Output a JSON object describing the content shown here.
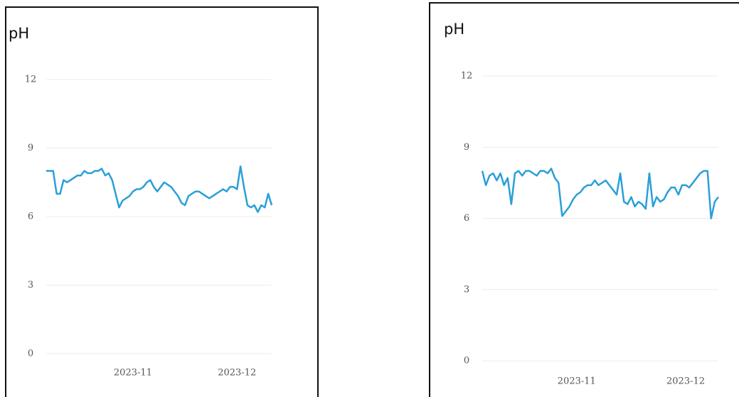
{
  "chart_data": [
    {
      "type": "line",
      "title": "pH",
      "x": [
        0,
        1,
        2,
        3,
        4,
        5,
        6,
        7,
        8,
        9,
        10,
        11,
        12,
        13,
        14,
        15,
        16,
        17,
        18,
        19,
        20,
        21,
        22,
        23,
        24,
        25,
        26,
        27,
        28,
        29,
        30,
        31,
        32,
        33,
        34,
        35,
        36,
        37,
        38,
        39,
        40,
        41,
        42,
        43,
        44,
        45,
        46,
        47,
        48,
        49,
        50,
        51,
        52,
        53,
        54,
        55,
        56,
        57,
        58,
        59,
        60,
        61,
        62,
        63,
        64,
        65
      ],
      "series": [
        {
          "name": "pH",
          "color": "#2a9fd8",
          "values": [
            8.0,
            8.0,
            8.0,
            7.0,
            7.0,
            7.6,
            7.5,
            7.6,
            7.7,
            7.8,
            7.8,
            8.0,
            7.9,
            7.9,
            8.0,
            8.0,
            8.1,
            7.8,
            7.9,
            7.6,
            7.0,
            6.4,
            6.7,
            6.8,
            6.9,
            7.1,
            7.2,
            7.2,
            7.3,
            7.5,
            7.6,
            7.3,
            7.1,
            7.3,
            7.5,
            7.4,
            7.3,
            7.1,
            6.9,
            6.6,
            6.5,
            6.9,
            7.0,
            7.1,
            7.1,
            7.0,
            6.9,
            6.8,
            6.9,
            7.0,
            7.1,
            7.2,
            7.1,
            7.3,
            7.3,
            7.2,
            8.2,
            7.3,
            6.5,
            6.4,
            6.5,
            6.2,
            6.5,
            6.4,
            7.0,
            6.5
          ]
        }
      ],
      "xlim": [
        0,
        65
      ],
      "xticks": [
        {
          "value": 25,
          "label": "2023-11"
        },
        {
          "value": 55,
          "label": "2023-12"
        }
      ],
      "ylim": [
        0,
        12
      ],
      "yticks": [
        0,
        3,
        6,
        9,
        12
      ],
      "grid": true
    },
    {
      "type": "line",
      "title": "pH",
      "x": [
        0,
        1,
        2,
        3,
        4,
        5,
        6,
        7,
        8,
        9,
        10,
        11,
        12,
        13,
        14,
        15,
        16,
        17,
        18,
        19,
        20,
        21,
        22,
        23,
        24,
        25,
        26,
        27,
        28,
        29,
        30,
        31,
        32,
        33,
        34,
        35,
        36,
        37,
        38,
        39,
        40,
        41,
        42,
        43,
        44,
        45,
        46,
        47,
        48,
        49,
        50,
        51,
        52,
        53,
        54,
        55,
        56,
        57,
        58,
        59,
        60,
        61,
        62,
        63,
        64,
        65
      ],
      "series": [
        {
          "name": "pH",
          "color": "#2a9fd8",
          "values": [
            8.0,
            7.4,
            7.8,
            7.9,
            7.6,
            7.9,
            7.4,
            7.7,
            6.6,
            7.9,
            8.0,
            7.8,
            8.0,
            8.0,
            7.9,
            7.8,
            8.0,
            8.0,
            7.9,
            8.1,
            7.7,
            7.5,
            6.1,
            6.3,
            6.5,
            6.8,
            7.0,
            7.1,
            7.3,
            7.4,
            7.4,
            7.6,
            7.4,
            7.5,
            7.6,
            7.4,
            7.2,
            7.0,
            7.9,
            6.7,
            6.6,
            6.9,
            6.5,
            6.7,
            6.6,
            6.4,
            7.9,
            6.5,
            6.9,
            6.7,
            6.8,
            7.1,
            7.3,
            7.3,
            7.0,
            7.4,
            7.4,
            7.3,
            7.5,
            7.7,
            7.9,
            8.0,
            8.0,
            6.0,
            6.7,
            6.9
          ]
        }
      ],
      "xlim": [
        0,
        65
      ],
      "xticks": [
        {
          "value": 26,
          "label": "2023-11"
        },
        {
          "value": 56,
          "label": "2023-12"
        }
      ],
      "ylim": [
        0,
        12
      ],
      "yticks": [
        0,
        3,
        6,
        9,
        12
      ],
      "grid": true
    }
  ]
}
